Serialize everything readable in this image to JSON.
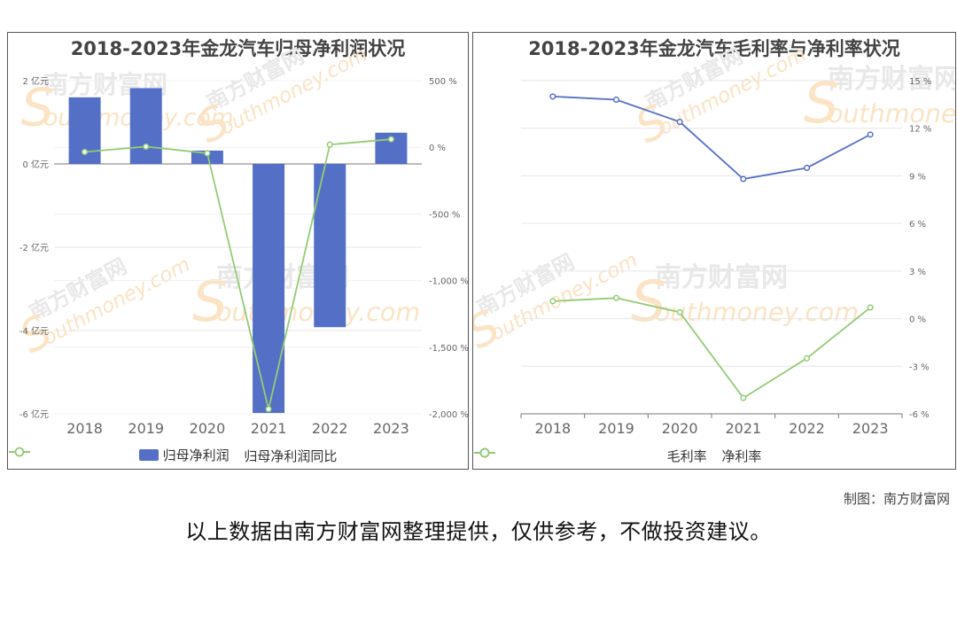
{
  "watermark": {
    "cn": "南方财富网",
    "en": "outhmoney.com",
    "s": "S"
  },
  "credit": "制图：南方财富网",
  "disclaimer": "以上数据由南方财富网整理提供，仅供参考，不做投资建议。",
  "colors": {
    "bar": "#5470c6",
    "green": "#91cc75",
    "blue": "#5470c6",
    "grid": "#e6e6e6",
    "axis": "#777777"
  },
  "chart_data": [
    {
      "type": "bar",
      "title": "2018-2023年金龙汽车归母净利润状况",
      "categories": [
        "2018",
        "2019",
        "2020",
        "2021",
        "2022",
        "2023"
      ],
      "y_left": {
        "ticks": [
          2,
          0,
          -2,
          -4,
          -6
        ],
        "tick_labels": [
          "2 亿元",
          "0 亿元",
          "-2 亿元",
          "-4 亿元",
          "-6 亿元"
        ],
        "ylim": [
          -6,
          2
        ]
      },
      "y_right": {
        "ticks": [
          500,
          0,
          -500,
          -1000,
          -1500,
          -2000
        ],
        "tick_labels": [
          "500 %",
          "0 %",
          "-500 %",
          "-1,000 %",
          "-1,500 %",
          "-2,000 %"
        ],
        "ylim": [
          -2000,
          500
        ]
      },
      "series": [
        {
          "name": "归母净利润",
          "kind": "bar",
          "axis": "left",
          "values": [
            1.6,
            1.82,
            0.32,
            -5.98,
            -3.92,
            0.75
          ]
        },
        {
          "name": "归母净利润同比",
          "kind": "line",
          "axis": "right",
          "values": [
            -35,
            5,
            -45,
            -1965,
            20,
            60
          ]
        }
      ],
      "grid": true,
      "legend": "bottom-center"
    },
    {
      "type": "line",
      "title": "2018-2023年金龙汽车毛利率与净利率状况",
      "categories": [
        "2018",
        "2019",
        "2020",
        "2021",
        "2022",
        "2023"
      ],
      "y_right": {
        "ticks": [
          15,
          12,
          9,
          6,
          3,
          0,
          -3,
          -6
        ],
        "tick_labels": [
          "15 %",
          "12 %",
          "9 %",
          "6 %",
          "3 %",
          "0 %",
          "-3 %",
          "-6 %"
        ],
        "ylim": [
          -6,
          15
        ]
      },
      "series": [
        {
          "name": "毛利率",
          "values": [
            14.0,
            13.8,
            12.4,
            8.8,
            9.5,
            11.6
          ]
        },
        {
          "name": "净利率",
          "values": [
            1.1,
            1.3,
            0.4,
            -5.0,
            -2.5,
            0.7
          ]
        }
      ],
      "grid": true,
      "legend": "bottom-center"
    }
  ]
}
